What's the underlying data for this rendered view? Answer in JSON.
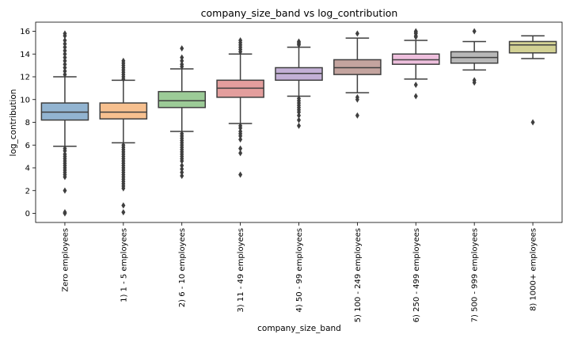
{
  "chart_data": {
    "type": "box",
    "title": "company_size_band vs log_contribution",
    "xlabel": "company_size_band",
    "ylabel": "log_contribution",
    "ylim": [
      -0.8,
      16.8
    ],
    "yticks": [
      0,
      2,
      4,
      6,
      8,
      10,
      12,
      14,
      16
    ],
    "grid": false,
    "categories": [
      "Zero employees",
      "1) 1 - 5 employees",
      "2) 6 - 10 employees",
      "3) 11 - 49 employees",
      "4) 50 - 99 employees",
      "5) 100 - 249 employees",
      "6) 250 - 499 employees",
      "7) 500 - 999 employees",
      "8) 1000+ employees"
    ],
    "colors": [
      "#92b4d1",
      "#f7c08f",
      "#9ccb97",
      "#e39e9d",
      "#c3b0d6",
      "#c4a49f",
      "#eebfdd",
      "#b8b8b8",
      "#d2d194"
    ],
    "boxes": [
      {
        "whisker_low": 5.9,
        "q1": 8.2,
        "median": 8.9,
        "q3": 9.7,
        "whisker_high": 12.0,
        "outliers": [
          15.8,
          15.6,
          15.2,
          14.9,
          14.6,
          14.3,
          14.0,
          13.7,
          13.4,
          13.1,
          12.8,
          12.5,
          12.2,
          5.7,
          5.5,
          5.2,
          5.0,
          4.8,
          4.6,
          4.4,
          4.2,
          4.0,
          3.8,
          3.6,
          3.4,
          3.2,
          2.0,
          0.1,
          0.0
        ]
      },
      {
        "whisker_low": 6.2,
        "q1": 8.3,
        "median": 8.9,
        "q3": 9.7,
        "whisker_high": 11.7,
        "outliers": [
          13.4,
          13.2,
          13.0,
          12.8,
          12.6,
          12.4,
          12.2,
          12.0,
          11.8,
          6.0,
          5.8,
          5.6,
          5.4,
          5.2,
          5.0,
          4.8,
          4.6,
          4.4,
          4.2,
          4.0,
          3.8,
          3.6,
          3.4,
          3.2,
          3.0,
          2.8,
          2.6,
          2.4,
          2.2,
          0.7,
          0.1
        ]
      },
      {
        "whisker_low": 7.2,
        "q1": 9.3,
        "median": 9.9,
        "q3": 10.7,
        "whisker_high": 12.7,
        "outliers": [
          14.5,
          13.7,
          13.4,
          13.1,
          12.9,
          7.0,
          6.8,
          6.6,
          6.4,
          6.2,
          6.0,
          5.8,
          5.6,
          5.4,
          5.2,
          5.0,
          4.8,
          4.6,
          4.2,
          3.9,
          3.6,
          3.3
        ]
      },
      {
        "whisker_low": 7.9,
        "q1": 10.2,
        "median": 11.0,
        "q3": 11.7,
        "whisker_high": 14.0,
        "outliers": [
          15.2,
          15.0,
          14.8,
          14.6,
          14.4,
          14.2,
          7.7,
          7.5,
          7.2,
          7.0,
          6.8,
          6.5,
          5.7,
          5.3,
          3.4
        ]
      },
      {
        "whisker_low": 10.3,
        "q1": 11.7,
        "median": 12.3,
        "q3": 12.8,
        "whisker_high": 14.6,
        "outliers": [
          15.1,
          15.0,
          14.9,
          14.8,
          10.1,
          9.9,
          9.7,
          9.5,
          9.3,
          9.1,
          8.9,
          8.6,
          8.2,
          7.7
        ]
      },
      {
        "whisker_low": 10.6,
        "q1": 12.2,
        "median": 12.8,
        "q3": 13.5,
        "whisker_high": 15.4,
        "outliers": [
          15.8,
          10.2,
          10.0,
          8.6
        ]
      },
      {
        "whisker_low": 11.8,
        "q1": 13.1,
        "median": 13.5,
        "q3": 14.0,
        "whisker_high": 15.2,
        "outliers": [
          16.0,
          15.9,
          15.8,
          15.6,
          15.5,
          11.3,
          10.3
        ]
      },
      {
        "whisker_low": 12.6,
        "q1": 13.2,
        "median": 13.7,
        "q3": 14.2,
        "whisker_high": 15.1,
        "outliers": [
          16.0,
          11.7,
          11.5
        ]
      },
      {
        "whisker_low": 13.6,
        "q1": 14.1,
        "median": 14.8,
        "q3": 15.1,
        "whisker_high": 15.6,
        "outliers": [
          8.0
        ]
      }
    ]
  }
}
